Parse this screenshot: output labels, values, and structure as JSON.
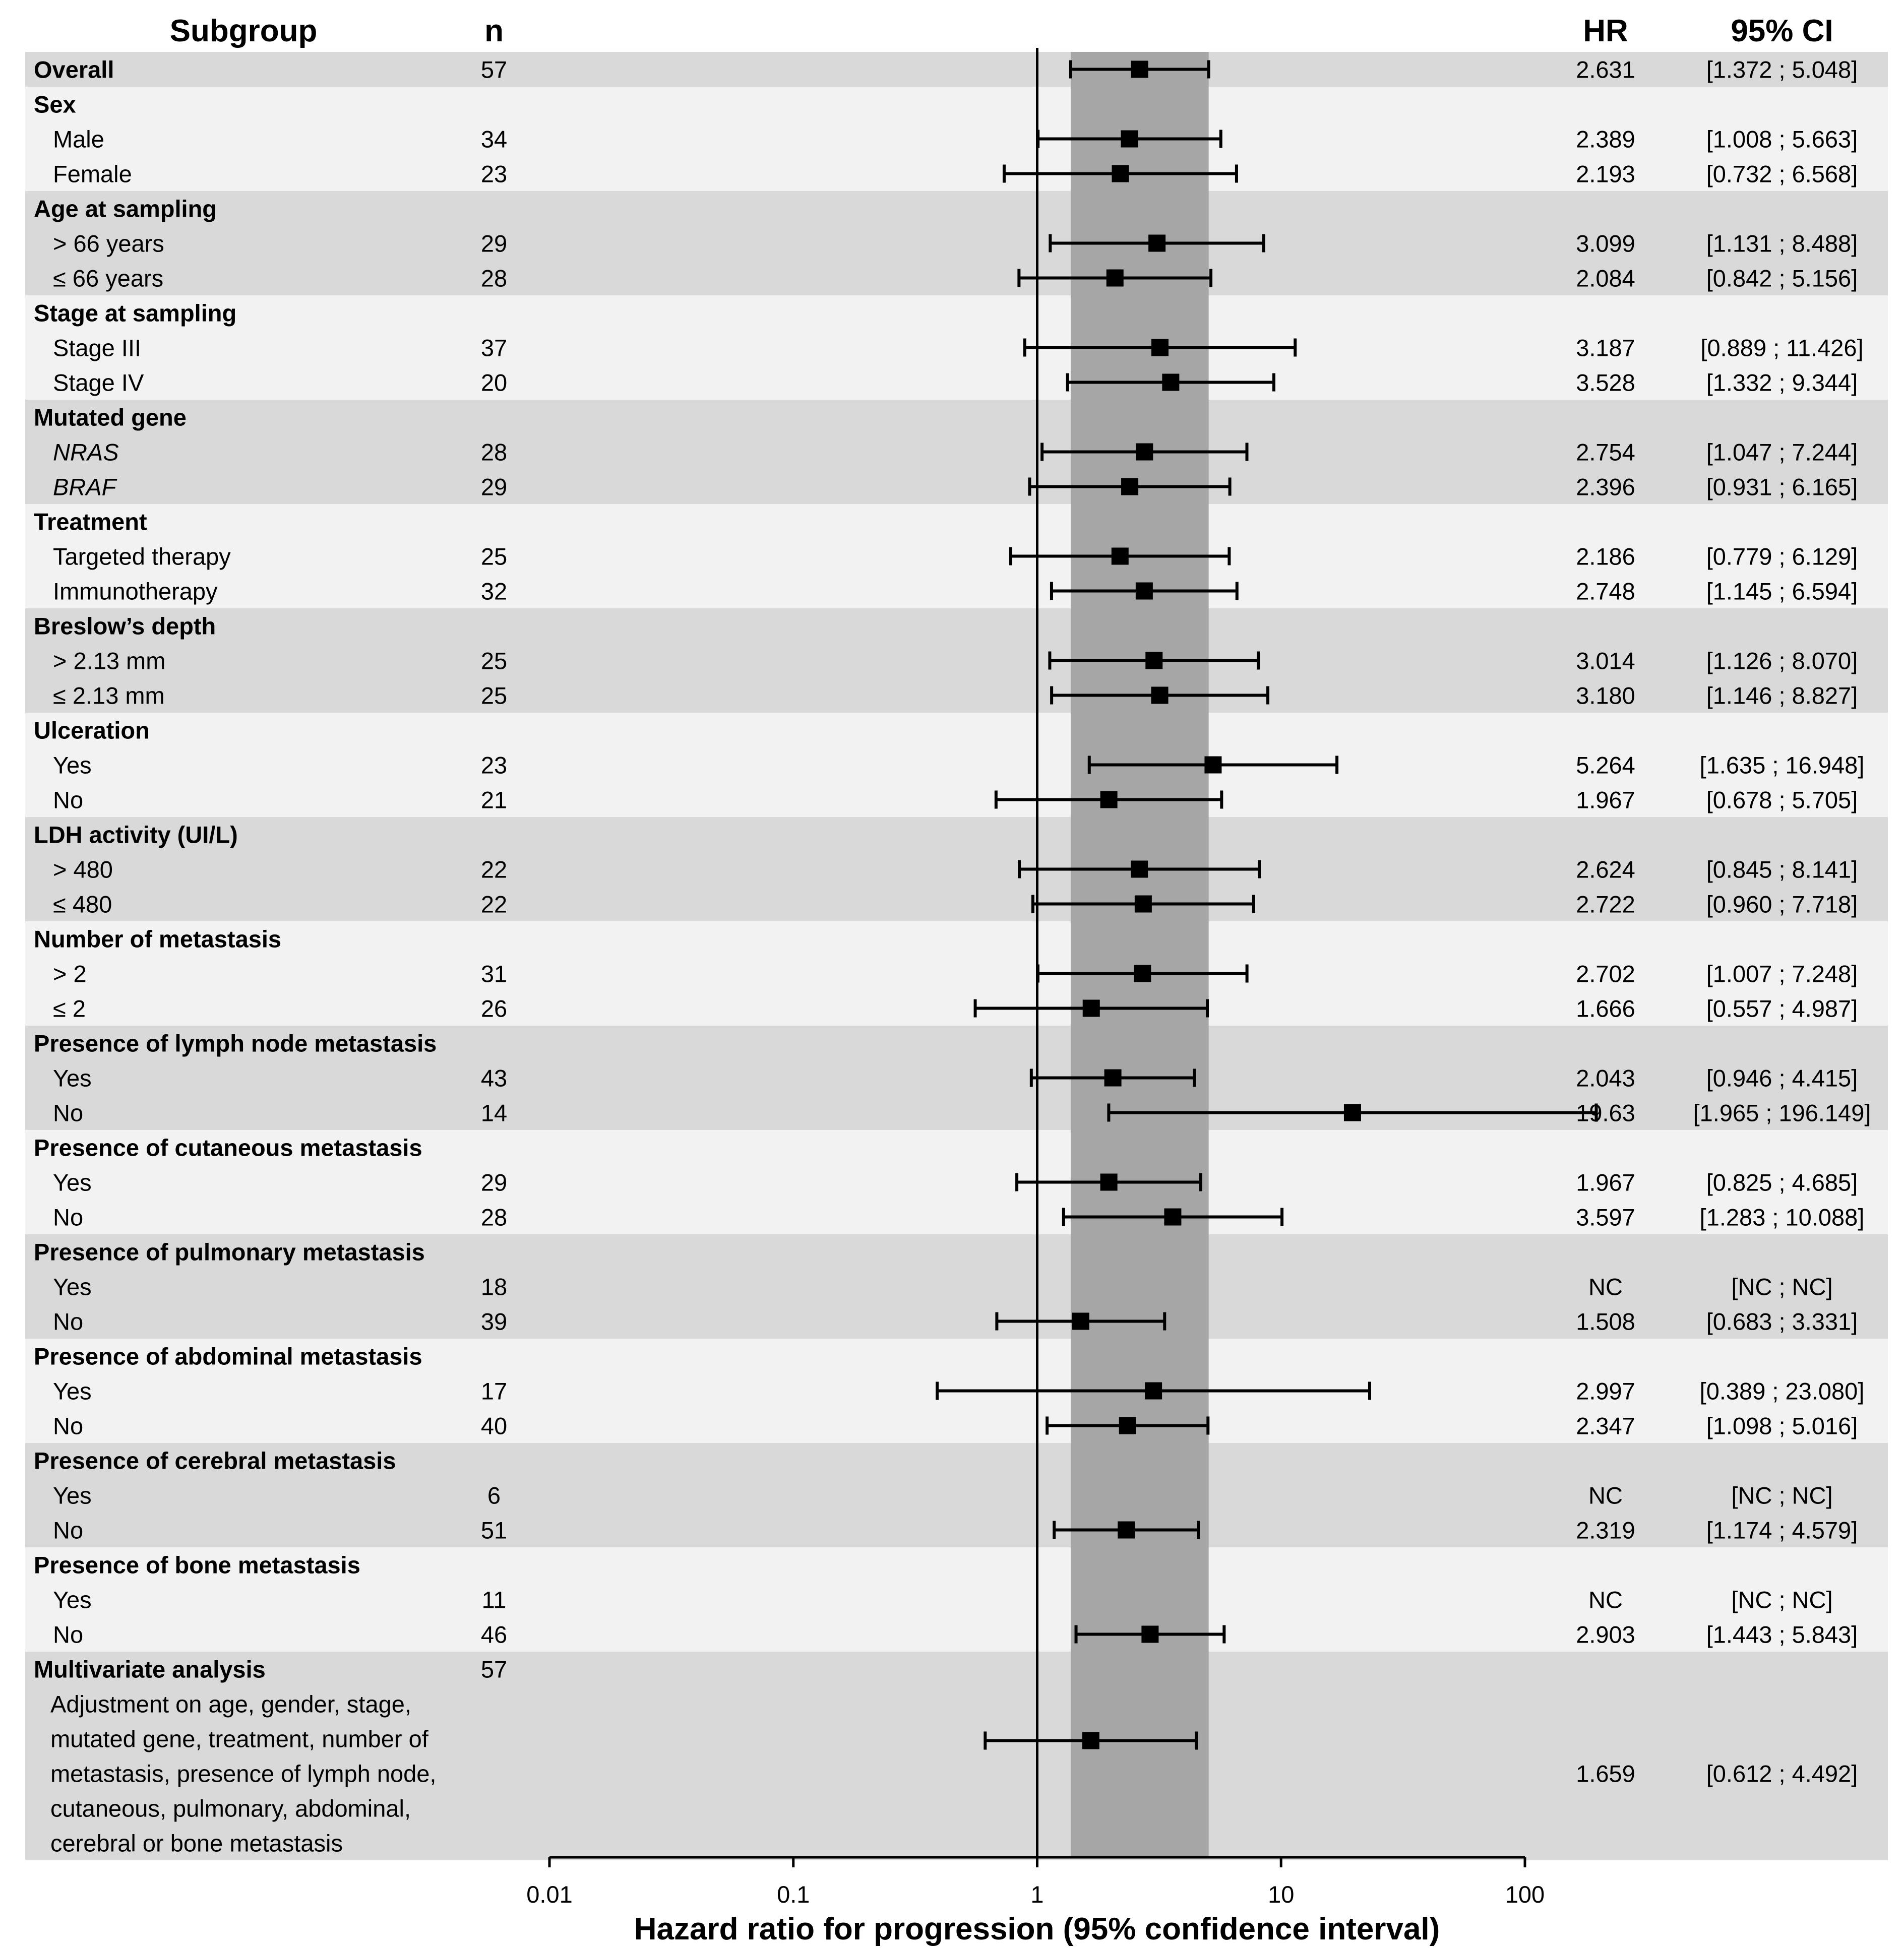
{
  "chart_data": {
    "type": "forest",
    "title": "",
    "headers": {
      "subgroup": "Subgroup",
      "n": "n",
      "hr": "HR",
      "ci": "95% CI"
    },
    "xlabel": "Hazard ratio for progression (95% confidence interval)",
    "xscale": "log",
    "xlim": [
      0.01,
      100
    ],
    "xticks": [
      {
        "value": 0.01,
        "label": "0.01"
      },
      {
        "value": 0.1,
        "label": "0.1"
      },
      {
        "value": 1,
        "label": "1"
      },
      {
        "value": 10,
        "label": "10"
      },
      {
        "value": 100,
        "label": "100"
      }
    ],
    "reference_line": 1,
    "overall_ci_band": [
      1.372,
      5.048
    ],
    "rows": [
      {
        "label": "Overall",
        "n": "57",
        "hr": 2.631,
        "lo": 1.372,
        "hi": 5.048,
        "hr_text": "2.631",
        "ci_text": "[1.372 ; 5.048]",
        "bold": true
      },
      {
        "label": "Sex",
        "bold": true
      },
      {
        "label": "Male",
        "n": "34",
        "hr": 2.389,
        "lo": 1.008,
        "hi": 5.663,
        "hr_text": "2.389",
        "ci_text": "[1.008 ; 5.663]"
      },
      {
        "label": "Female",
        "n": "23",
        "hr": 2.193,
        "lo": 0.732,
        "hi": 6.568,
        "hr_text": "2.193",
        "ci_text": "[0.732 ; 6.568]"
      },
      {
        "label": "Age at sampling",
        "bold": true
      },
      {
        "label": "> 66 years",
        "n": "29",
        "hr": 3.099,
        "lo": 1.131,
        "hi": 8.488,
        "hr_text": "3.099",
        "ci_text": "[1.131 ; 8.488]"
      },
      {
        "label": "≤ 66 years",
        "n": "28",
        "hr": 2.084,
        "lo": 0.842,
        "hi": 5.156,
        "hr_text": "2.084",
        "ci_text": "[0.842 ; 5.156]"
      },
      {
        "label": "Stage at sampling",
        "bold": true
      },
      {
        "label": "Stage III",
        "n": "37",
        "hr": 3.187,
        "lo": 0.889,
        "hi": 11.426,
        "hr_text": "3.187",
        "ci_text": "[0.889 ; 11.426]"
      },
      {
        "label": "Stage IV",
        "n": "20",
        "hr": 3.528,
        "lo": 1.332,
        "hi": 9.344,
        "hr_text": "3.528",
        "ci_text": "[1.332 ; 9.344]"
      },
      {
        "label": "Mutated gene",
        "bold": true
      },
      {
        "label": "NRAS",
        "n": "28",
        "hr": 2.754,
        "lo": 1.047,
        "hi": 7.244,
        "hr_text": "2.754",
        "ci_text": "[1.047 ; 7.244]",
        "italic": true
      },
      {
        "label": "BRAF",
        "n": "29",
        "hr": 2.396,
        "lo": 0.931,
        "hi": 6.165,
        "hr_text": "2.396",
        "ci_text": "[0.931 ; 6.165]",
        "italic": true
      },
      {
        "label": "Treatment",
        "bold": true
      },
      {
        "label": "Targeted therapy",
        "n": "25",
        "hr": 2.186,
        "lo": 0.779,
        "hi": 6.129,
        "hr_text": "2.186",
        "ci_text": "[0.779 ; 6.129]"
      },
      {
        "label": "Immunotherapy",
        "n": "32",
        "hr": 2.748,
        "lo": 1.145,
        "hi": 6.594,
        "hr_text": "2.748",
        "ci_text": "[1.145 ; 6.594]"
      },
      {
        "label": "Breslow’s depth",
        "bold": true
      },
      {
        "label": "> 2.13 mm",
        "n": "25",
        "hr": 3.014,
        "lo": 1.126,
        "hi": 8.07,
        "hr_text": "3.014",
        "ci_text": "[1.126 ; 8.070]"
      },
      {
        "label": "≤ 2.13 mm",
        "n": "25",
        "hr": 3.18,
        "lo": 1.146,
        "hi": 8.827,
        "hr_text": "3.180",
        "ci_text": "[1.146 ; 8.827]"
      },
      {
        "label": "Ulceration",
        "bold": true
      },
      {
        "label": "Yes",
        "n": "23",
        "hr": 5.264,
        "lo": 1.635,
        "hi": 16.948,
        "hr_text": "5.264",
        "ci_text": "[1.635 ; 16.948]"
      },
      {
        "label": "No",
        "n": "21",
        "hr": 1.967,
        "lo": 0.678,
        "hi": 5.705,
        "hr_text": "1.967",
        "ci_text": "[0.678 ; 5.705]"
      },
      {
        "label": "LDH activity (UI/L)",
        "bold": true
      },
      {
        "label": "> 480",
        "n": "22",
        "hr": 2.624,
        "lo": 0.845,
        "hi": 8.141,
        "hr_text": "2.624",
        "ci_text": "[0.845 ; 8.141]"
      },
      {
        "label": "≤ 480",
        "n": "22",
        "hr": 2.722,
        "lo": 0.96,
        "hi": 7.718,
        "hr_text": "2.722",
        "ci_text": "[0.960 ; 7.718]"
      },
      {
        "label": "Number of metastasis",
        "bold": true
      },
      {
        "label": "> 2",
        "n": "31",
        "hr": 2.702,
        "lo": 1.007,
        "hi": 7.248,
        "hr_text": "2.702",
        "ci_text": "[1.007 ; 7.248]"
      },
      {
        "label": "≤ 2",
        "n": "26",
        "hr": 1.666,
        "lo": 0.557,
        "hi": 4.987,
        "hr_text": "1.666",
        "ci_text": "[0.557 ; 4.987]"
      },
      {
        "label": "Presence of lymph node metastasis",
        "bold": true
      },
      {
        "label": "Yes",
        "n": "43",
        "hr": 2.043,
        "lo": 0.946,
        "hi": 4.415,
        "hr_text": "2.043",
        "ci_text": "[0.946 ; 4.415]"
      },
      {
        "label": "No",
        "n": "14",
        "hr": 19.63,
        "lo": 1.965,
        "hi": 196.149,
        "hr_text": "19.63",
        "ci_text": "[1.965 ; 196.149]"
      },
      {
        "label": "Presence of cutaneous metastasis",
        "bold": true
      },
      {
        "label": "Yes",
        "n": "29",
        "hr": 1.967,
        "lo": 0.825,
        "hi": 4.685,
        "hr_text": "1.967",
        "ci_text": "[0.825 ; 4.685]"
      },
      {
        "label": "No",
        "n": "28",
        "hr": 3.597,
        "lo": 1.283,
        "hi": 10.088,
        "hr_text": "3.597",
        "ci_text": "[1.283 ; 10.088]"
      },
      {
        "label": "Presence of pulmonary metastasis",
        "bold": true
      },
      {
        "label": "Yes",
        "n": "18",
        "hr_text": "NC",
        "ci_text": "[NC ; NC]"
      },
      {
        "label": "No",
        "n": "39",
        "hr": 1.508,
        "lo": 0.683,
        "hi": 3.331,
        "hr_text": "1.508",
        "ci_text": "[0.683 ; 3.331]"
      },
      {
        "label": "Presence of abdominal metastasis",
        "bold": true
      },
      {
        "label": "Yes",
        "n": "17",
        "hr": 2.997,
        "lo": 0.389,
        "hi": 23.08,
        "hr_text": "2.997",
        "ci_text": "[0.389 ; 23.080]"
      },
      {
        "label": "No",
        "n": "40",
        "hr": 2.347,
        "lo": 1.098,
        "hi": 5.016,
        "hr_text": "2.347",
        "ci_text": "[1.098 ; 5.016]"
      },
      {
        "label": "Presence of cerebral metastasis",
        "bold": true
      },
      {
        "label": "Yes",
        "n": "6",
        "hr_text": "NC",
        "ci_text": "[NC ; NC]"
      },
      {
        "label": "No",
        "n": "51",
        "hr": 2.319,
        "lo": 1.174,
        "hi": 4.579,
        "hr_text": "2.319",
        "ci_text": "[1.174 ; 4.579]"
      },
      {
        "label": "Presence of bone metastasis",
        "bold": true
      },
      {
        "label": "Yes",
        "n": "11",
        "hr_text": "NC",
        "ci_text": "[NC ; NC]"
      },
      {
        "label": "No",
        "n": "46",
        "hr": 2.903,
        "lo": 1.443,
        "hi": 5.843,
        "hr_text": "2.903",
        "ci_text": "[1.443 ; 5.843]"
      },
      {
        "label": "Multivariate analysis",
        "n": "57",
        "bold": true
      },
      {
        "label": "Adjustment on age, gender, stage,",
        "multiline_part": true
      },
      {
        "label": "mutated gene, treatment, number of",
        "multiline_part": true
      },
      {
        "label": "metastasis, presence of lymph node,",
        "multiline_part": true,
        "hr": 1.659,
        "lo": 0.612,
        "hi": 4.492,
        "hr_text": "1.659",
        "ci_text": "[0.612 ; 4.492]"
      },
      {
        "label": "cutaneous, pulmonary, abdominal,",
        "multiline_part": true
      },
      {
        "label": "cerebral or bone metastasis",
        "multiline_part": true
      }
    ]
  },
  "colors": {
    "band_dark": "#d9d9d9",
    "band_light": "#f2f2f2",
    "ci_band": "#a6a6a6",
    "ink": "#000000"
  }
}
